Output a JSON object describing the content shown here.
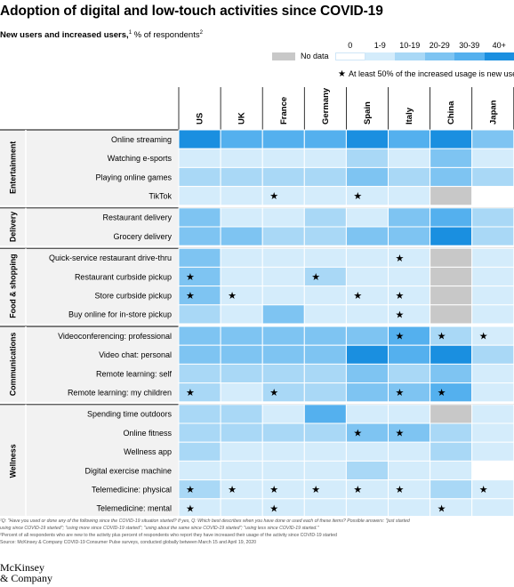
{
  "title": "Adoption of digital and low-touch activities since COVID-19",
  "subtitle": {
    "bold": "New users and increased users,",
    "sup1": "1",
    "rest": " % of respondents",
    "sup2": "2"
  },
  "legend": {
    "no_data_label": "No data",
    "bins": [
      "0",
      "1-9",
      "10-19",
      "20-29",
      "30-39",
      "40+"
    ],
    "colors": {
      "0": "#ffffff",
      "1-9": "#d4ecfb",
      "10-19": "#a9d8f6",
      "20-29": "#7ec4f2",
      "30-39": "#54b0ee",
      "40+": "#1a8fe0",
      "No data": "#c8c8c8"
    },
    "star_note": "At least 50% of the increased usage is new users",
    "star_symbol": "★"
  },
  "chart_data": {
    "type": "heatmap",
    "countries": [
      "US",
      "UK",
      "France",
      "Germany",
      "Spain",
      "Italy",
      "China",
      "Japan"
    ],
    "groups": [
      {
        "name": "Entertainment",
        "rows": [
          {
            "label": "Online streaming",
            "values": [
              "40+",
              "30-39",
              "30-39",
              "30-39",
              "40+",
              "30-39",
              "40+",
              "20-29"
            ],
            "stars": []
          },
          {
            "label": "Watching e-sports",
            "values": [
              "1-9",
              "1-9",
              "1-9",
              "1-9",
              "10-19",
              "1-9",
              "20-29",
              "1-9"
            ],
            "stars": []
          },
          {
            "label": "Playing online games",
            "values": [
              "10-19",
              "10-19",
              "10-19",
              "10-19",
              "20-29",
              "10-19",
              "20-29",
              "10-19"
            ],
            "stars": []
          },
          {
            "label": "TikTok",
            "values": [
              "1-9",
              "1-9",
              "1-9",
              "1-9",
              "1-9",
              "1-9",
              "No data",
              "0"
            ],
            "stars": [
              "France",
              "Spain"
            ]
          }
        ]
      },
      {
        "name": "Delivery",
        "rows": [
          {
            "label": "Restaurant delivery",
            "values": [
              "20-29",
              "1-9",
              "1-9",
              "10-19",
              "1-9",
              "20-29",
              "30-39",
              "10-19"
            ],
            "stars": []
          },
          {
            "label": "Grocery delivery",
            "values": [
              "20-29",
              "20-29",
              "10-19",
              "10-19",
              "20-29",
              "20-29",
              "40+",
              "10-19"
            ],
            "stars": []
          }
        ]
      },
      {
        "name": "Food & shopping",
        "rows": [
          {
            "label": "Quick-service restaurant drive-thru",
            "values": [
              "20-29",
              "1-9",
              "1-9",
              "1-9",
              "1-9",
              "1-9",
              "No data",
              "1-9"
            ],
            "stars": [
              "Italy"
            ]
          },
          {
            "label": "Restaurant curbside pickup",
            "values": [
              "20-29",
              "1-9",
              "1-9",
              "10-19",
              "1-9",
              "1-9",
              "No data",
              "1-9"
            ],
            "stars": [
              "US",
              "Germany"
            ]
          },
          {
            "label": "Store curbside pickup",
            "values": [
              "20-29",
              "1-9",
              "1-9",
              "1-9",
              "1-9",
              "1-9",
              "No data",
              "1-9"
            ],
            "stars": [
              "US",
              "UK",
              "Spain",
              "Italy"
            ]
          },
          {
            "label": "Buy online for in-store pickup",
            "values": [
              "10-19",
              "1-9",
              "20-29",
              "1-9",
              "1-9",
              "1-9",
              "No data",
              "1-9"
            ],
            "stars": [
              "Italy"
            ]
          }
        ]
      },
      {
        "name": "Communications",
        "rows": [
          {
            "label": "Videoconferencing: professional",
            "values": [
              "20-29",
              "20-29",
              "20-29",
              "20-29",
              "20-29",
              "30-39",
              "10-19",
              "1-9"
            ],
            "stars": [
              "Italy",
              "China",
              "Japan"
            ]
          },
          {
            "label": "Video chat: personal",
            "values": [
              "20-29",
              "20-29",
              "20-29",
              "20-29",
              "40+",
              "30-39",
              "40+",
              "10-19"
            ],
            "stars": []
          },
          {
            "label": "Remote learning: self",
            "values": [
              "10-19",
              "10-19",
              "10-19",
              "10-19",
              "20-29",
              "10-19",
              "20-29",
              "1-9"
            ],
            "stars": []
          },
          {
            "label": "Remote learning: my children",
            "values": [
              "10-19",
              "1-9",
              "10-19",
              "10-19",
              "20-29",
              "20-29",
              "30-39",
              "1-9"
            ],
            "stars": [
              "US",
              "France",
              "Italy",
              "China"
            ]
          }
        ]
      },
      {
        "name": "Wellness",
        "rows": [
          {
            "label": "Spending time outdoors",
            "values": [
              "10-19",
              "10-19",
              "1-9",
              "30-39",
              "1-9",
              "1-9",
              "No data",
              "1-9"
            ],
            "stars": []
          },
          {
            "label": "Online fitness",
            "values": [
              "10-19",
              "10-19",
              "10-19",
              "10-19",
              "20-29",
              "20-29",
              "10-19",
              "1-9"
            ],
            "stars": [
              "Spain",
              "Italy"
            ]
          },
          {
            "label": "Wellness app",
            "values": [
              "10-19",
              "1-9",
              "1-9",
              "1-9",
              "1-9",
              "1-9",
              "10-19",
              "1-9"
            ],
            "stars": []
          },
          {
            "label": "Digital exercise machine",
            "values": [
              "1-9",
              "1-9",
              "1-9",
              "1-9",
              "10-19",
              "1-9",
              "1-9",
              "0"
            ],
            "stars": []
          },
          {
            "label": "Telemedicine: physical",
            "values": [
              "10-19",
              "1-9",
              "1-9",
              "1-9",
              "1-9",
              "1-9",
              "10-19",
              "1-9"
            ],
            "stars": [
              "US",
              "UK",
              "France",
              "Germany",
              "Spain",
              "Italy",
              "Japan"
            ]
          },
          {
            "label": "Telemedicine: mental",
            "values": [
              "1-9",
              "1-9",
              "1-9",
              "1-9",
              "1-9",
              "1-9",
              "1-9",
              "1-9"
            ],
            "stars": [
              "US",
              "France",
              "China"
            ]
          }
        ]
      }
    ]
  },
  "footnotes": {
    "f1a": "¹Q: \"Have you used or done any of the following since the COVID-19 situation started? If yes, Q: Which best describes when you have done or used each of these items? Possible answers: \"just started",
    "f1b": "using since COVID-19 started\"; \"using more since COVID-19 started\"; \"using about the same since COVID-19 started\"; \"using less since COVID-19 started.\"",
    "f2": "²Percent of all respondents who are new to the activity plus percent of respondents who report they have increased their usage of the activity since COVID-19 started",
    "source": "Source: McKinsey & Company COVID-19 Consumer Pulse surveys, conducted globally between March 15 and April 19, 2020"
  },
  "logo": {
    "line1": "McKinsey",
    "line2": "& Company"
  }
}
